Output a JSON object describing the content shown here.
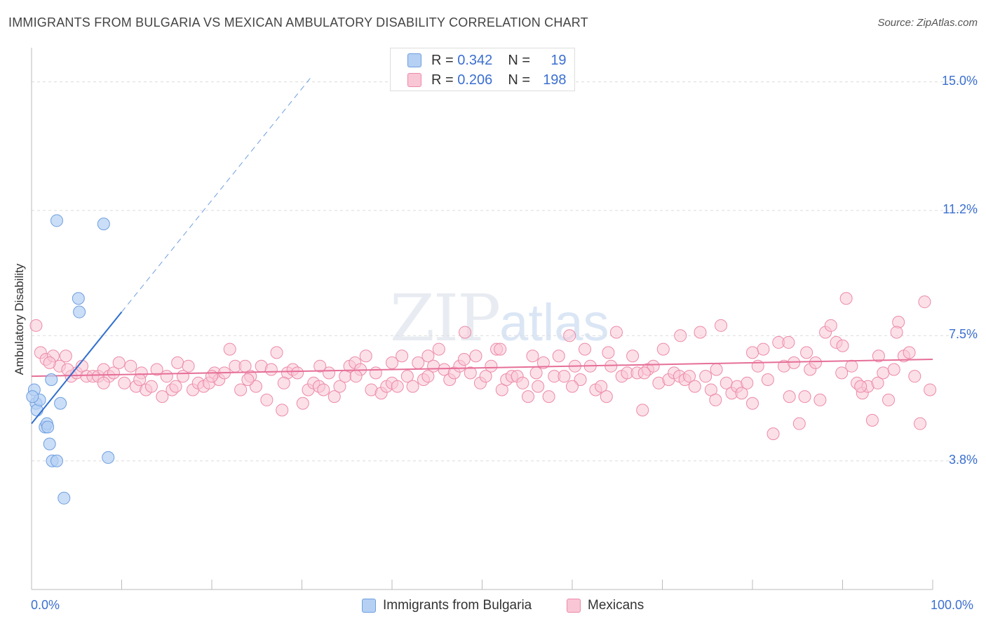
{
  "header": {
    "title": "IMMIGRANTS FROM BULGARIA VS MEXICAN AMBULATORY DISABILITY CORRELATION CHART",
    "source": "Source: ZipAtlas.com"
  },
  "watermark": {
    "zip": "ZIP",
    "atlas": "atlas"
  },
  "legend": {
    "rows": [
      {
        "r_label": "R = ",
        "r_value": "0.342",
        "n_label": "N = ",
        "n_value": "19"
      },
      {
        "r_label": "R = ",
        "r_value": "0.206",
        "n_label": "N = ",
        "n_value": "198"
      }
    ]
  },
  "chart_data": {
    "type": "scatter",
    "title": "IMMIGRANTS FROM BULGARIA VS MEXICAN AMBULATORY DISABILITY CORRELATION CHART",
    "xlabel": "",
    "ylabel": "Ambulatory Disability",
    "xlim": [
      0,
      100
    ],
    "ylim": [
      0,
      15.8
    ],
    "x_tick_labels": [
      "0.0%",
      "100.0%"
    ],
    "y_ticks": [
      3.8,
      7.5,
      11.2,
      15.0
    ],
    "y_tick_labels": [
      "3.8%",
      "7.5%",
      "11.2%",
      "15.0%"
    ],
    "colors": {
      "blue": "#6e9fe0",
      "blue_fill": "#b5d0f3",
      "pink": "#ec8aa8",
      "pink_fill": "#f9c6d6",
      "blue_line": "#2f6fce",
      "pink_line": "#e66f98"
    },
    "series": [
      {
        "name": "Immigrants from Bulgaria",
        "r": 0.342,
        "n": 19,
        "trend": {
          "x0": 0,
          "y0": 4.9,
          "x1": 10,
          "y1": 8.2,
          "dash_to_x": 31
        },
        "points": [
          [
            0.3,
            5.9
          ],
          [
            0.5,
            5.5
          ],
          [
            0.6,
            5.3
          ],
          [
            0.9,
            5.6
          ],
          [
            1.5,
            4.8
          ],
          [
            1.7,
            4.9
          ],
          [
            1.8,
            4.8
          ],
          [
            2.0,
            4.3
          ],
          [
            2.2,
            6.2
          ],
          [
            2.3,
            3.8
          ],
          [
            2.8,
            3.8
          ],
          [
            2.8,
            10.9
          ],
          [
            3.2,
            5.5
          ],
          [
            3.6,
            2.7
          ],
          [
            5.2,
            8.6
          ],
          [
            5.3,
            8.2
          ],
          [
            8.0,
            10.8
          ],
          [
            8.5,
            3.9
          ],
          [
            0.1,
            5.7
          ]
        ]
      },
      {
        "name": "Mexicans",
        "r": 0.206,
        "n": 198,
        "trend": {
          "x0": 0,
          "y0": 6.3,
          "x1": 100,
          "y1": 6.8
        },
        "points": [
          [
            0.5,
            7.8
          ],
          [
            1.0,
            7.0
          ],
          [
            1.6,
            6.8
          ],
          [
            2.4,
            6.9
          ],
          [
            3.1,
            6.6
          ],
          [
            3.8,
            6.9
          ],
          [
            4.4,
            6.3
          ],
          [
            5.0,
            6.4
          ],
          [
            5.6,
            6.6
          ],
          [
            6.1,
            6.3
          ],
          [
            6.8,
            6.3
          ],
          [
            7.4,
            6.3
          ],
          [
            8.0,
            6.5
          ],
          [
            8.6,
            6.3
          ],
          [
            9.1,
            6.4
          ],
          [
            9.7,
            6.7
          ],
          [
            10.3,
            6.1
          ],
          [
            11.0,
            6.6
          ],
          [
            11.6,
            6.0
          ],
          [
            12.2,
            6.4
          ],
          [
            12.7,
            5.9
          ],
          [
            13.3,
            6.0
          ],
          [
            13.9,
            6.5
          ],
          [
            14.5,
            5.7
          ],
          [
            15.0,
            6.3
          ],
          [
            15.6,
            5.9
          ],
          [
            16.2,
            6.7
          ],
          [
            16.8,
            6.3
          ],
          [
            17.4,
            6.6
          ],
          [
            17.9,
            5.9
          ],
          [
            18.5,
            6.1
          ],
          [
            19.1,
            6.0
          ],
          [
            19.7,
            6.1
          ],
          [
            20.3,
            6.4
          ],
          [
            20.8,
            6.2
          ],
          [
            21.4,
            6.4
          ],
          [
            22.0,
            7.1
          ],
          [
            22.6,
            6.6
          ],
          [
            23.2,
            5.9
          ],
          [
            23.7,
            6.6
          ],
          [
            24.3,
            6.3
          ],
          [
            24.9,
            6.0
          ],
          [
            25.5,
            6.6
          ],
          [
            26.1,
            5.6
          ],
          [
            26.6,
            6.5
          ],
          [
            27.2,
            7.0
          ],
          [
            27.8,
            5.3
          ],
          [
            28.4,
            6.4
          ],
          [
            29.0,
            6.5
          ],
          [
            29.5,
            6.4
          ],
          [
            30.1,
            5.5
          ],
          [
            30.7,
            5.9
          ],
          [
            31.3,
            6.1
          ],
          [
            31.9,
            6.0
          ],
          [
            32.4,
            5.9
          ],
          [
            33.0,
            6.4
          ],
          [
            33.6,
            5.7
          ],
          [
            34.2,
            6.0
          ],
          [
            34.8,
            6.3
          ],
          [
            35.3,
            6.6
          ],
          [
            35.9,
            6.7
          ],
          [
            36.5,
            6.5
          ],
          [
            37.1,
            6.9
          ],
          [
            37.7,
            5.9
          ],
          [
            38.2,
            6.4
          ],
          [
            38.8,
            5.8
          ],
          [
            39.4,
            6.0
          ],
          [
            40.0,
            6.1
          ],
          [
            40.6,
            6.0
          ],
          [
            41.1,
            6.9
          ],
          [
            41.7,
            6.3
          ],
          [
            42.3,
            6.0
          ],
          [
            42.9,
            6.7
          ],
          [
            43.5,
            6.2
          ],
          [
            44.0,
            6.9
          ],
          [
            44.6,
            6.6
          ],
          [
            45.2,
            7.1
          ],
          [
            45.8,
            6.5
          ],
          [
            46.4,
            6.2
          ],
          [
            46.9,
            6.4
          ],
          [
            47.5,
            6.6
          ],
          [
            48.1,
            7.6
          ],
          [
            48.7,
            6.4
          ],
          [
            49.3,
            6.9
          ],
          [
            49.8,
            6.1
          ],
          [
            50.4,
            6.3
          ],
          [
            51.0,
            6.6
          ],
          [
            51.6,
            7.1
          ],
          [
            52.2,
            5.9
          ],
          [
            52.7,
            6.2
          ],
          [
            53.3,
            6.3
          ],
          [
            53.9,
            6.3
          ],
          [
            54.5,
            6.1
          ],
          [
            55.1,
            5.7
          ],
          [
            55.6,
            6.9
          ],
          [
            56.2,
            6.0
          ],
          [
            56.8,
            6.7
          ],
          [
            57.4,
            5.7
          ],
          [
            58.0,
            6.3
          ],
          [
            58.5,
            6.9
          ],
          [
            59.1,
            6.3
          ],
          [
            59.7,
            7.5
          ],
          [
            60.3,
            6.6
          ],
          [
            60.9,
            6.2
          ],
          [
            61.4,
            7.1
          ],
          [
            62.0,
            6.6
          ],
          [
            62.6,
            5.9
          ],
          [
            63.2,
            6.0
          ],
          [
            63.8,
            5.7
          ],
          [
            64.3,
            6.6
          ],
          [
            64.9,
            7.6
          ],
          [
            65.5,
            6.3
          ],
          [
            66.1,
            6.4
          ],
          [
            66.7,
            6.9
          ],
          [
            67.2,
            6.4
          ],
          [
            67.8,
            5.3
          ],
          [
            68.4,
            6.5
          ],
          [
            69.0,
            6.6
          ],
          [
            69.6,
            6.1
          ],
          [
            70.1,
            7.1
          ],
          [
            70.7,
            6.2
          ],
          [
            71.3,
            6.4
          ],
          [
            71.9,
            6.3
          ],
          [
            72.5,
            6.2
          ],
          [
            73.0,
            6.3
          ],
          [
            73.6,
            6.0
          ],
          [
            74.2,
            7.6
          ],
          [
            74.8,
            6.3
          ],
          [
            75.4,
            5.9
          ],
          [
            75.9,
            5.6
          ],
          [
            76.5,
            7.8
          ],
          [
            77.1,
            6.1
          ],
          [
            77.7,
            5.8
          ],
          [
            78.3,
            6.0
          ],
          [
            78.8,
            5.8
          ],
          [
            79.4,
            6.1
          ],
          [
            80.0,
            5.5
          ],
          [
            80.6,
            6.6
          ],
          [
            81.2,
            7.1
          ],
          [
            81.7,
            6.2
          ],
          [
            82.3,
            4.6
          ],
          [
            82.9,
            7.3
          ],
          [
            83.5,
            6.6
          ],
          [
            84.1,
            5.7
          ],
          [
            84.6,
            6.7
          ],
          [
            85.2,
            4.9
          ],
          [
            85.8,
            5.7
          ],
          [
            86.4,
            6.5
          ],
          [
            87.0,
            6.7
          ],
          [
            87.5,
            5.6
          ],
          [
            88.1,
            7.6
          ],
          [
            88.7,
            7.8
          ],
          [
            89.3,
            7.3
          ],
          [
            89.9,
            6.4
          ],
          [
            90.4,
            8.6
          ],
          [
            91.0,
            6.6
          ],
          [
            91.6,
            6.1
          ],
          [
            92.2,
            5.8
          ],
          [
            92.8,
            6.0
          ],
          [
            93.3,
            5.0
          ],
          [
            93.9,
            6.1
          ],
          [
            94.5,
            6.4
          ],
          [
            95.1,
            5.6
          ],
          [
            95.7,
            6.5
          ],
          [
            96.2,
            7.9
          ],
          [
            96.8,
            6.9
          ],
          [
            97.4,
            7.0
          ],
          [
            98.0,
            6.3
          ],
          [
            98.6,
            4.9
          ],
          [
            99.1,
            8.5
          ],
          [
            99.7,
            5.9
          ],
          [
            96.0,
            7.6
          ],
          [
            94.0,
            6.9
          ],
          [
            92.0,
            6.0
          ],
          [
            90.0,
            7.2
          ],
          [
            86.0,
            7.0
          ],
          [
            84.0,
            7.3
          ],
          [
            80.0,
            7.0
          ],
          [
            76.0,
            6.5
          ],
          [
            72.0,
            7.5
          ],
          [
            68.0,
            6.4
          ],
          [
            64.0,
            7.0
          ],
          [
            60.0,
            6.0
          ],
          [
            56.0,
            6.4
          ],
          [
            52.0,
            7.1
          ],
          [
            48.0,
            6.8
          ],
          [
            44.0,
            6.3
          ],
          [
            40.0,
            6.7
          ],
          [
            36.0,
            6.3
          ],
          [
            32.0,
            6.6
          ],
          [
            28.0,
            6.1
          ],
          [
            24.0,
            6.2
          ],
          [
            20.0,
            6.3
          ],
          [
            16.0,
            6.0
          ],
          [
            12.0,
            6.2
          ],
          [
            8.0,
            6.1
          ],
          [
            4.0,
            6.5
          ],
          [
            2.0,
            6.7
          ]
        ]
      }
    ]
  },
  "bottom_legend": {
    "items": [
      "Immigrants from Bulgaria",
      "Mexicans"
    ]
  }
}
